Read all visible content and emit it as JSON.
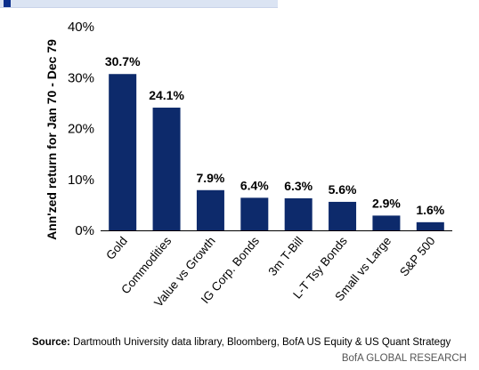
{
  "header_clip": {
    "text": ""
  },
  "chart_data": {
    "type": "bar",
    "ylabel": "Ann'zed return for Jan 70 - Dec 79",
    "xlabel": "",
    "categories": [
      "Gold",
      "Commodities",
      "Value vs Growth",
      "IG Corp. Bonds",
      "3m T-Bill",
      "L-T Tsy Bonds",
      "Small vs Large",
      "S&P 500"
    ],
    "values": [
      30.7,
      24.1,
      7.9,
      6.4,
      6.3,
      5.6,
      2.9,
      1.6
    ],
    "value_labels": [
      "30.7%",
      "24.1%",
      "7.9%",
      "6.4%",
      "6.3%",
      "5.6%",
      "2.9%",
      "1.6%"
    ],
    "ylim": [
      0,
      40
    ],
    "yticks": [
      0,
      10,
      20,
      30,
      40
    ],
    "ytick_labels": [
      "0%",
      "10%",
      "20%",
      "30%",
      "40%"
    ],
    "grid": false,
    "bar_color": "#0d2a6b"
  },
  "footer": {
    "source_label": "Source:",
    "source_text": " Dartmouth University data library, Bloomberg, BofA US Equity & US Quant Strategy",
    "brand": "BofA GLOBAL RESEARCH"
  }
}
